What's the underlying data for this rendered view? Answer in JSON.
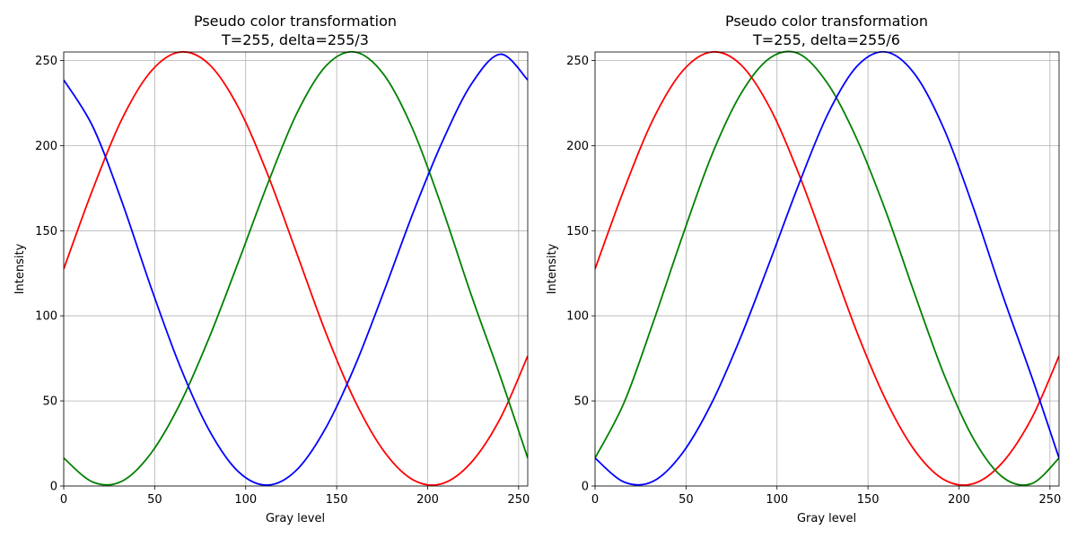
{
  "chart_data": [
    {
      "type": "line",
      "title": "Pseudo color transformation",
      "subtitle": "T=255, delta=255/3",
      "xlabel": "Gray level",
      "ylabel": "Intensity",
      "xlim": [
        0,
        255
      ],
      "ylim": [
        0,
        255
      ],
      "xticks": [
        0,
        50,
        100,
        150,
        200,
        250
      ],
      "yticks": [
        0,
        50,
        100,
        150,
        200,
        250
      ],
      "grid": true,
      "x": [
        0,
        16,
        32,
        48,
        64,
        80,
        96,
        112,
        128,
        144,
        160,
        176,
        192,
        208,
        224,
        240,
        255
      ],
      "series": [
        {
          "color": "#ff0000",
          "values": [
            127.5,
            174.4,
            215.6,
            243.7,
            255.0,
            247.7,
            222.4,
            183.3,
            136.9,
            90.2,
            50.1,
            20.4,
            3.6,
            1.4,
            13.9,
            39.9,
            76.4
          ]
        },
        {
          "color": "#008000",
          "values": [
            16.4,
            2.3,
            2.8,
            19.3,
            48.5,
            87.3,
            131.7,
            177.3,
            218.7,
            246.7,
            255.0,
            241.6,
            209.2,
            163.3,
            112.1,
            64.1,
            16.4
          ]
        },
        {
          "color": "#0000ff",
          "values": [
            238.6,
            211.1,
            167.0,
            116.6,
            70.1,
            32.6,
            8.4,
            0.5,
            9.4,
            34.1,
            70.4,
            114.4,
            160.5,
            202.1,
            236.1,
            253.7,
            238.6
          ]
        }
      ]
    },
    {
      "type": "line",
      "title": "Pseudo color transformation",
      "subtitle": "T=255, delta=255/6",
      "xlabel": "Gray level",
      "ylabel": "Intensity",
      "xlim": [
        0,
        255
      ],
      "ylim": [
        0,
        255
      ],
      "xticks": [
        0,
        50,
        100,
        150,
        200,
        250
      ],
      "yticks": [
        0,
        50,
        100,
        150,
        200,
        250
      ],
      "grid": true,
      "x": [
        0,
        16,
        32,
        48,
        64,
        80,
        96,
        112,
        128,
        144,
        160,
        176,
        192,
        208,
        224,
        240,
        255
      ],
      "series": [
        {
          "color": "#ff0000",
          "values": [
            127.5,
            174.4,
            215.6,
            243.7,
            255.0,
            247.7,
            222.4,
            183.3,
            136.9,
            90.2,
            50.1,
            20.4,
            3.6,
            1.4,
            13.9,
            39.9,
            76.4
          ]
        },
        {
          "color": "#008000",
          "values": [
            16.4,
            49.1,
            96.3,
            146.7,
            194.0,
            230.2,
            251.4,
            254.0,
            236.2,
            203.6,
            160.8,
            111.8,
            64.9,
            27.7,
            5.2,
            1.4,
            16.4
          ]
        },
        {
          "color": "#0000ff",
          "values": [
            16.4,
            2.3,
            2.8,
            19.3,
            48.5,
            87.3,
            131.7,
            177.3,
            218.7,
            246.7,
            255.0,
            241.6,
            209.2,
            163.3,
            112.1,
            64.1,
            16.4
          ]
        }
      ]
    }
  ]
}
